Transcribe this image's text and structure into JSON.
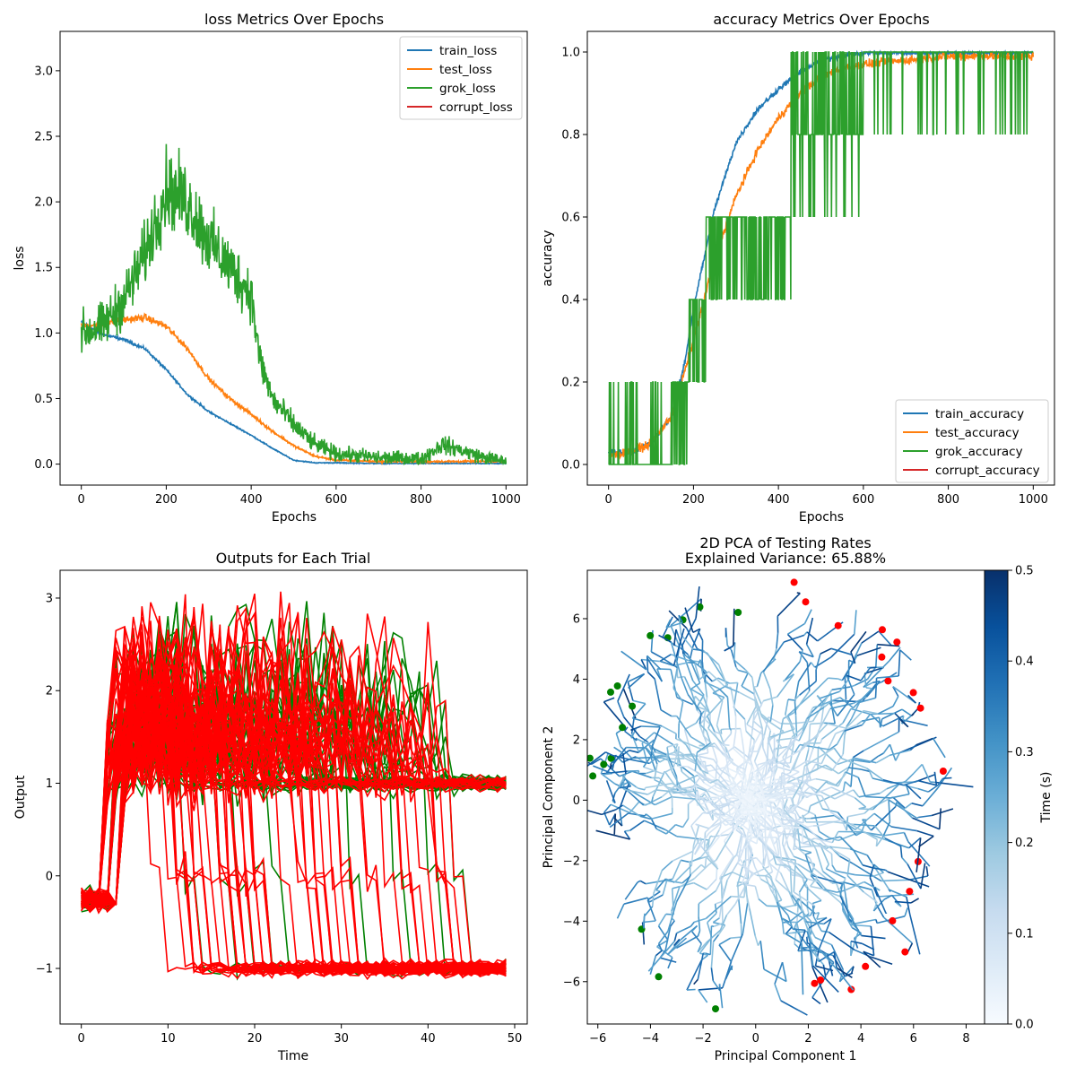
{
  "chart_data": [
    {
      "type": "line",
      "title": "loss Metrics Over Epochs",
      "xlabel": "Epochs",
      "ylabel": "loss",
      "xlim": [
        -50,
        1050
      ],
      "ylim": [
        -0.16,
        3.3
      ],
      "xticks": [
        0,
        200,
        400,
        600,
        800,
        1000
      ],
      "xtick_labels": [
        "0",
        "200",
        "400",
        "600",
        "800",
        "1000"
      ],
      "yticks": [
        0.0,
        0.5,
        1.0,
        1.5,
        2.0,
        2.5,
        3.0
      ],
      "ytick_labels": [
        "0.0",
        "0.5",
        "1.0",
        "1.5",
        "2.0",
        "2.5",
        "3.0"
      ],
      "legend_position": "top-right",
      "series": [
        {
          "name": "train_loss",
          "color": "#1f77b4",
          "noise": 0.012,
          "x": [
            0,
            50,
            100,
            150,
            200,
            250,
            300,
            350,
            400,
            450,
            500,
            550,
            600,
            700,
            800,
            900,
            1000
          ],
          "y": [
            1.08,
            0.99,
            0.95,
            0.88,
            0.72,
            0.53,
            0.4,
            0.31,
            0.22,
            0.12,
            0.03,
            0.01,
            0.01,
            0.005,
            0.005,
            0.005,
            0.005
          ]
        },
        {
          "name": "test_loss",
          "color": "#ff7f0e",
          "noise": 0.025,
          "x": [
            0,
            50,
            100,
            150,
            200,
            250,
            300,
            350,
            400,
            450,
            500,
            550,
            600,
            700,
            800,
            900,
            1000
          ],
          "y": [
            1.05,
            1.07,
            1.1,
            1.12,
            1.05,
            0.88,
            0.65,
            0.5,
            0.38,
            0.25,
            0.14,
            0.06,
            0.03,
            0.02,
            0.02,
            0.02,
            0.02
          ]
        },
        {
          "name": "grok_loss",
          "color": "#2ca02c",
          "noise": 0.18,
          "x": [
            0,
            50,
            100,
            150,
            200,
            250,
            300,
            350,
            400,
            420,
            450,
            500,
            550,
            600,
            700,
            800,
            850,
            900,
            950,
            1000
          ],
          "y": [
            1.0,
            1.05,
            1.25,
            1.6,
            2.1,
            2.0,
            1.7,
            1.5,
            1.3,
            0.8,
            0.5,
            0.3,
            0.15,
            0.08,
            0.05,
            0.04,
            0.15,
            0.1,
            0.05,
            0.02
          ]
        },
        {
          "name": "corrupt_loss",
          "color": "#d62728",
          "x": [],
          "y": []
        }
      ]
    },
    {
      "type": "line",
      "title": "accuracy Metrics Over Epochs",
      "xlabel": "Epochs",
      "ylabel": "accuracy",
      "xlim": [
        -50,
        1050
      ],
      "ylim": [
        -0.05,
        1.05
      ],
      "xticks": [
        0,
        200,
        400,
        600,
        800,
        1000
      ],
      "xtick_labels": [
        "0",
        "200",
        "400",
        "600",
        "800",
        "1000"
      ],
      "yticks": [
        0.0,
        0.2,
        0.4,
        0.6,
        0.8,
        1.0
      ],
      "ytick_labels": [
        "0.0",
        "0.2",
        "0.4",
        "0.6",
        "0.8",
        "1.0"
      ],
      "legend_position": "bottom-right",
      "series": [
        {
          "name": "train_accuracy",
          "color": "#1f77b4",
          "noise": 0.01,
          "x": [
            0,
            50,
            100,
            150,
            180,
            200,
            250,
            300,
            350,
            400,
            450,
            500,
            550,
            600,
            700,
            800,
            900,
            1000
          ],
          "y": [
            0.03,
            0.03,
            0.05,
            0.12,
            0.25,
            0.38,
            0.62,
            0.78,
            0.86,
            0.91,
            0.95,
            0.98,
            0.99,
            1.0,
            1.0,
            1.0,
            1.0,
            1.0
          ]
        },
        {
          "name": "test_accuracy",
          "color": "#ff7f0e",
          "noise": 0.015,
          "x": [
            0,
            50,
            100,
            150,
            200,
            250,
            300,
            350,
            400,
            450,
            500,
            550,
            600,
            700,
            800,
            900,
            1000
          ],
          "y": [
            0.02,
            0.03,
            0.05,
            0.12,
            0.3,
            0.5,
            0.65,
            0.76,
            0.84,
            0.9,
            0.94,
            0.96,
            0.97,
            0.98,
            0.99,
            0.99,
            0.99
          ]
        },
        {
          "name": "grok_accuracy",
          "color": "#2ca02c",
          "step": true,
          "x": [
            0,
            150,
            190,
            230,
            430,
            600,
            800,
            1000
          ],
          "y": [
            0.0,
            0.2,
            0.4,
            0.6,
            0.8,
            1.0,
            1.0,
            1.0
          ],
          "jitter_range": [
            0.0,
            1.0
          ]
        },
        {
          "name": "corrupt_accuracy",
          "color": "#d62728",
          "x": [],
          "y": []
        }
      ]
    },
    {
      "type": "line",
      "title": "Outputs for Each Trial",
      "xlabel": "Time",
      "ylabel": "Output",
      "xlim": [
        -2.45,
        51.45
      ],
      "ylim": [
        -1.6,
        3.3
      ],
      "xticks": [
        0,
        10,
        20,
        30,
        40,
        50
      ],
      "xtick_labels": [
        "0",
        "10",
        "20",
        "30",
        "40",
        "50"
      ],
      "yticks": [
        -1,
        0,
        1,
        2,
        3
      ],
      "ytick_labels": [
        "−1",
        "0",
        "1",
        "2",
        "3"
      ],
      "series_groups": [
        {
          "color": "#008000",
          "count": 40,
          "final_value": 1.0,
          "alt_final_value": -1.0
        },
        {
          "color": "#ff0000",
          "count": 70,
          "final_value": -1.0,
          "alt_final_value": 1.0
        }
      ],
      "time_points": 50
    },
    {
      "type": "line",
      "title": "2D PCA of Testing Rates",
      "subtitle": "Explained Variance: 65.88%",
      "xlabel": "Principal Component 1",
      "ylabel": "Principal Component 2",
      "xlim": [
        -6.4,
        8.7
      ],
      "ylim": [
        -7.4,
        7.6
      ],
      "xticks": [
        -6,
        -4,
        -2,
        0,
        2,
        4,
        6,
        8
      ],
      "xtick_labels": [
        "−6",
        "−4",
        "−2",
        "0",
        "2",
        "4",
        "6",
        "8"
      ],
      "yticks": [
        -6,
        -4,
        -2,
        0,
        2,
        4,
        6
      ],
      "ytick_labels": [
        "−6",
        "−4",
        "−2",
        "0",
        "2",
        "4",
        "6"
      ],
      "colorbar": {
        "label": "Time (s)",
        "range": [
          0.0,
          0.5
        ],
        "ticks": [
          0.0,
          0.1,
          0.2,
          0.3,
          0.4,
          0.5
        ],
        "tick_labels": [
          "0.0",
          "0.1",
          "0.2",
          "0.3",
          "0.4",
          "0.5"
        ],
        "colormap": [
          "#f7fbff",
          "#deebf7",
          "#c6dbef",
          "#9ecae1",
          "#6baed6",
          "#4292c6",
          "#2171b5",
          "#08519c",
          "#08306b"
        ]
      },
      "start_color": "#008000",
      "end_color": "#ff0000",
      "trajectory_count": 110
    }
  ]
}
